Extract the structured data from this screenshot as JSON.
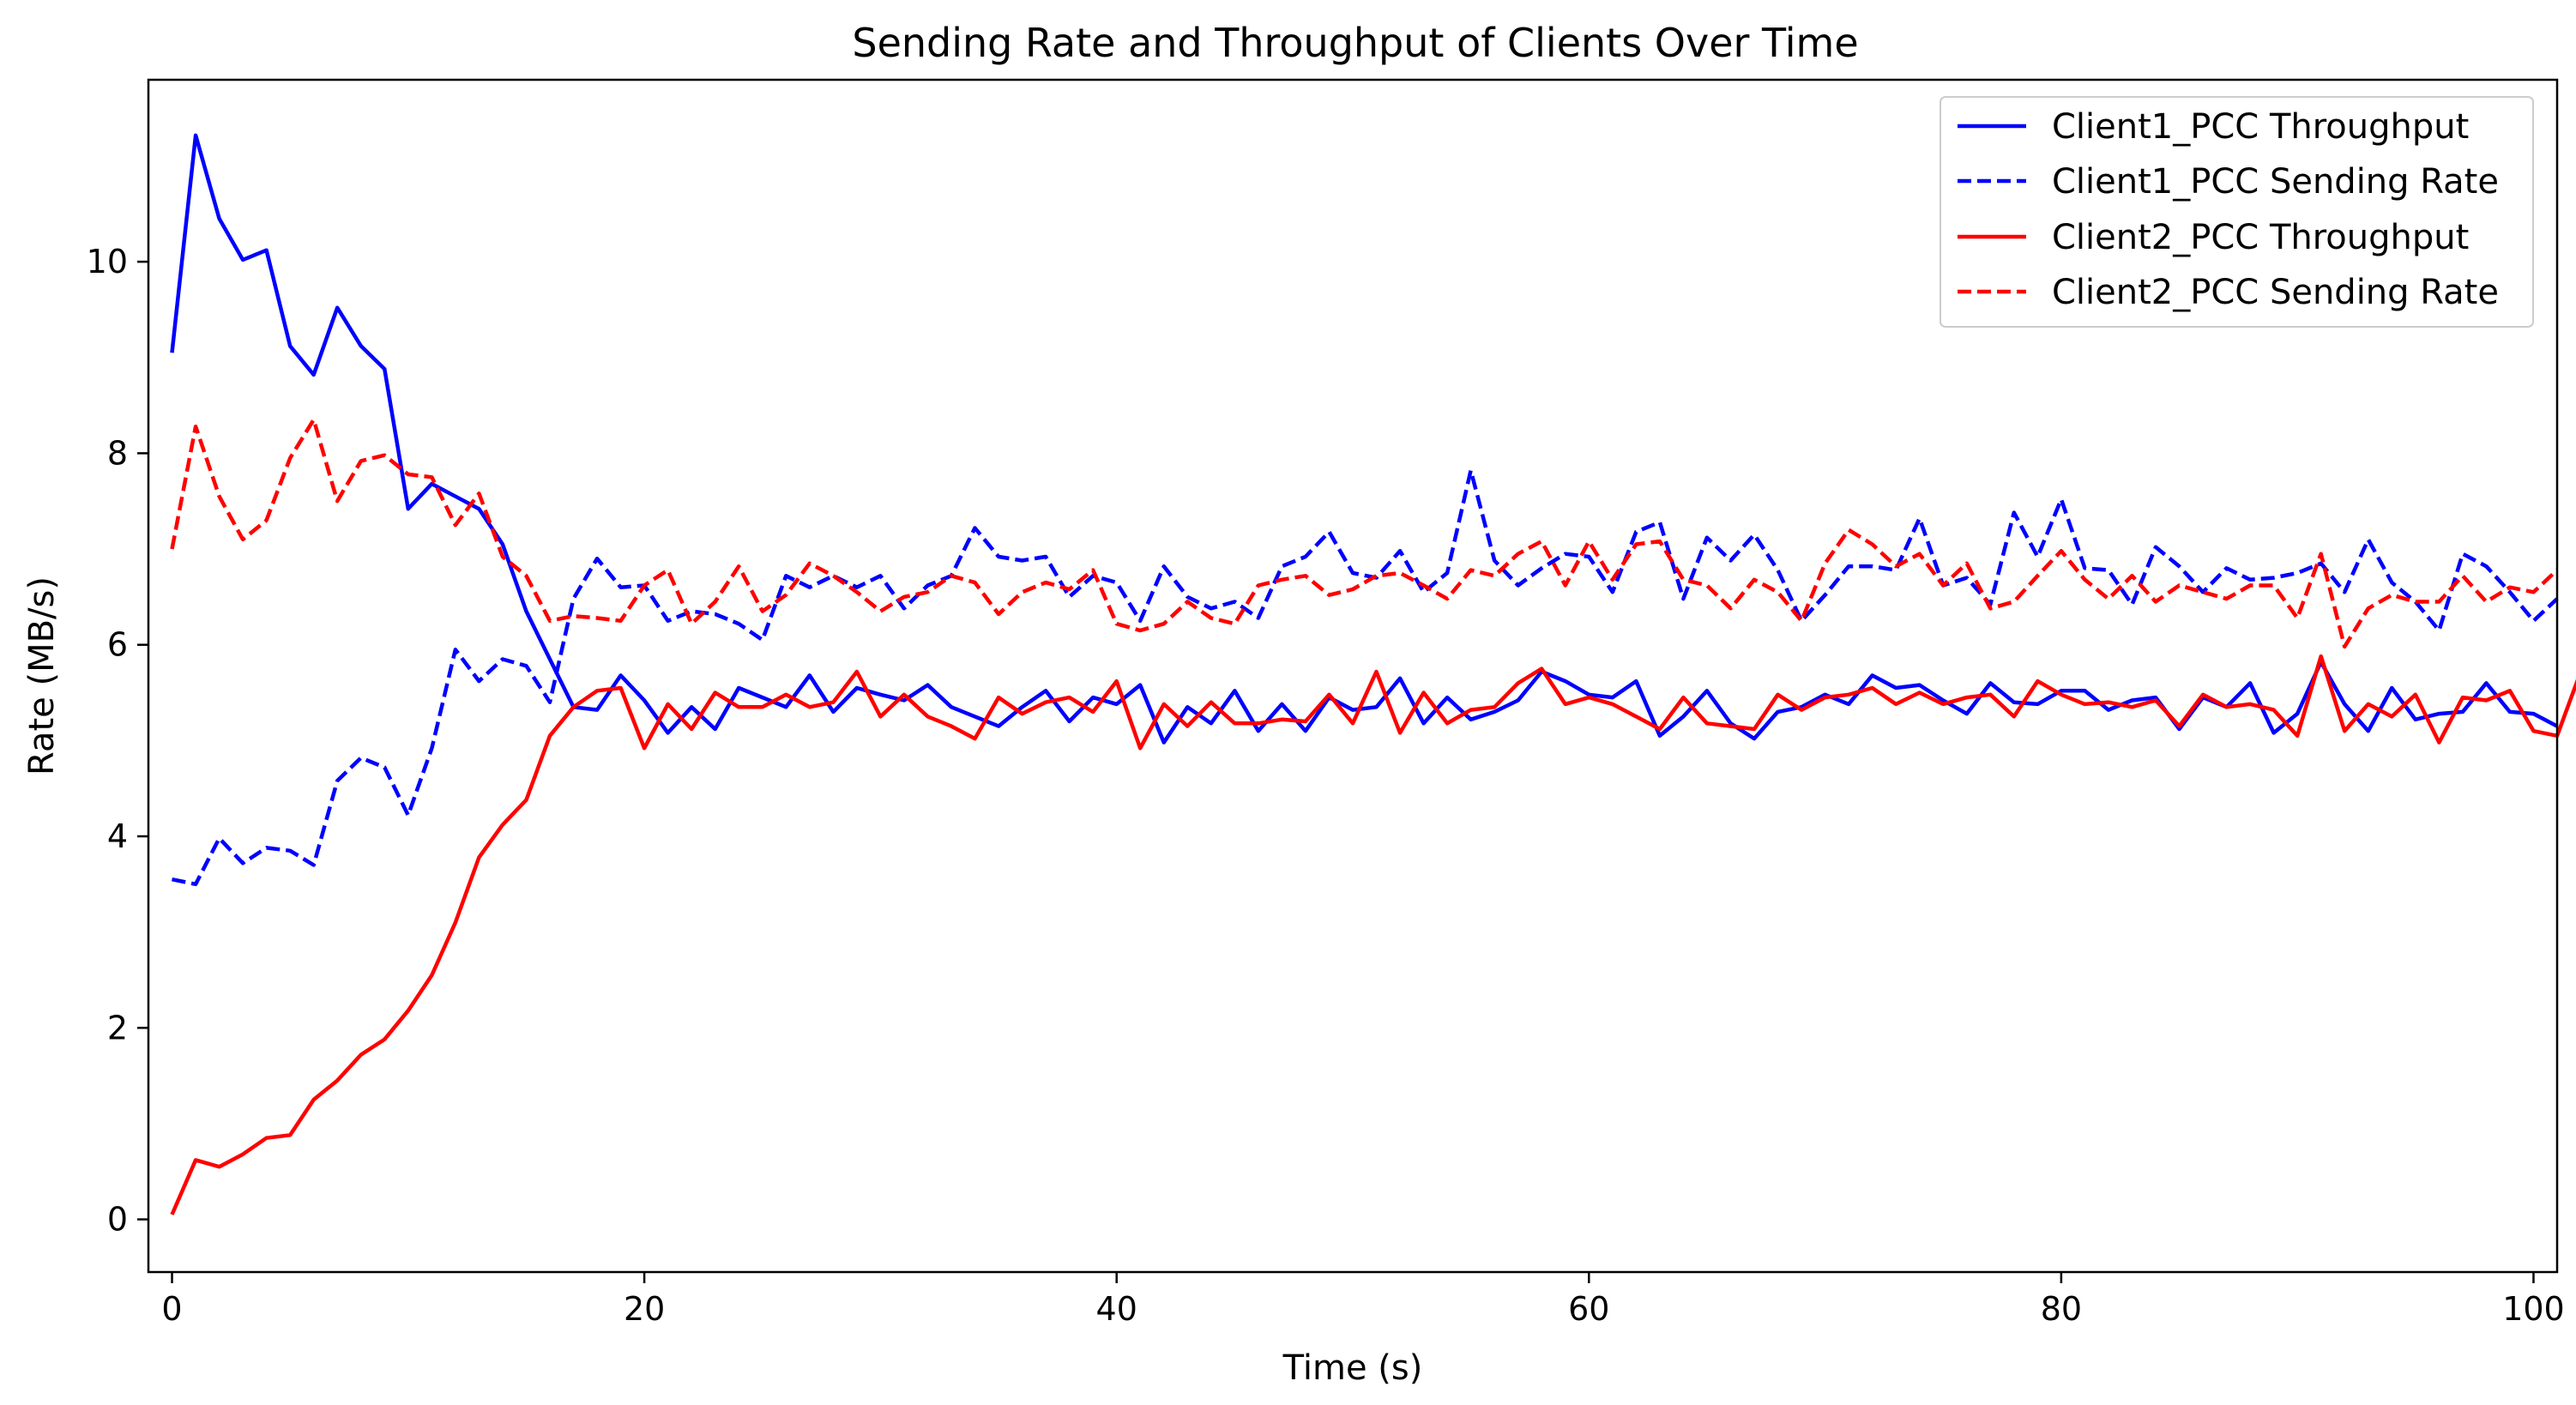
{
  "chart_data": {
    "type": "line",
    "title": "Sending Rate and Throughput of Clients Over Time",
    "xlabel": "Time (s)",
    "ylabel": "Rate (MB/s)",
    "xlim": [
      -1,
      101
    ],
    "ylim": [
      -0.55,
      11.9
    ],
    "xticks": [
      0,
      20,
      40,
      60,
      80,
      100
    ],
    "yticks": [
      0,
      2,
      4,
      6,
      8,
      10
    ],
    "grid": false,
    "legend_position": "top-right",
    "series": [
      {
        "name": "Client1_PCC Throughput",
        "color": "#0000ff",
        "style": "solid",
        "values": [
          9.05,
          11.32,
          10.45,
          10.02,
          10.12,
          9.12,
          8.82,
          9.52,
          9.12,
          8.88,
          7.42,
          7.68,
          7.55,
          7.42,
          7.05,
          6.35,
          5.85,
          5.35,
          5.32,
          5.68,
          5.42,
          5.08,
          5.35,
          5.12,
          5.55,
          5.45,
          5.35,
          5.68,
          5.3,
          5.55,
          5.48,
          5.42,
          5.58,
          5.35,
          5.25,
          5.15,
          5.35,
          5.52,
          5.2,
          5.45,
          5.38,
          5.58,
          4.98,
          5.35,
          5.18,
          5.52,
          5.1,
          5.38,
          5.1,
          5.45,
          5.32,
          5.35,
          5.65,
          5.18,
          5.45,
          5.22,
          5.3,
          5.42,
          5.72,
          5.62,
          5.48,
          5.45,
          5.62,
          5.05,
          5.25,
          5.52,
          5.18,
          5.02,
          5.3,
          5.35,
          5.48,
          5.38,
          5.68,
          5.55,
          5.58,
          5.42,
          5.28,
          5.6,
          5.4,
          5.38,
          5.52,
          5.52,
          5.32,
          5.42,
          5.45,
          5.12,
          5.45,
          5.35,
          5.6,
          5.08,
          5.28,
          5.82,
          5.38,
          5.1,
          5.55,
          5.22,
          5.28,
          5.3,
          5.6,
          5.3,
          5.28,
          5.15
        ]
      },
      {
        "name": "Client1_PCC Sending Rate",
        "color": "#0000ff",
        "style": "dashed",
        "values": [
          3.55,
          3.5,
          3.98,
          3.72,
          3.88,
          3.85,
          3.7,
          4.58,
          4.82,
          4.72,
          4.22,
          4.92,
          5.95,
          5.62,
          5.85,
          5.78,
          5.4,
          6.48,
          6.9,
          6.6,
          6.62,
          6.25,
          6.35,
          6.32,
          6.22,
          6.05,
          6.72,
          6.6,
          6.72,
          6.6,
          6.72,
          6.38,
          6.62,
          6.72,
          7.22,
          6.92,
          6.88,
          6.92,
          6.5,
          6.72,
          6.65,
          6.25,
          6.82,
          6.5,
          6.38,
          6.45,
          6.28,
          6.82,
          6.92,
          7.18,
          6.75,
          6.7,
          6.98,
          6.55,
          6.75,
          7.82,
          6.88,
          6.62,
          6.8,
          6.95,
          6.92,
          6.55,
          7.18,
          7.28,
          6.48,
          7.12,
          6.88,
          7.15,
          6.78,
          6.25,
          6.52,
          6.82,
          6.82,
          6.78,
          7.32,
          6.62,
          6.7,
          6.42,
          7.38,
          6.92,
          7.52,
          6.8,
          6.78,
          6.42,
          7.02,
          6.82,
          6.55,
          6.8,
          6.68,
          6.7,
          6.75,
          6.85,
          6.55,
          7.1,
          6.65,
          6.45,
          6.15,
          6.95,
          6.82,
          6.55,
          6.25,
          6.48
        ]
      },
      {
        "name": "Client2_PCC Throughput",
        "color": "#ff0000",
        "style": "solid",
        "values": [
          0.05,
          0.62,
          0.55,
          0.68,
          0.85,
          0.88,
          1.25,
          1.45,
          1.72,
          1.88,
          2.18,
          2.55,
          3.1,
          3.78,
          4.12,
          4.38,
          5.05,
          5.35,
          5.52,
          5.55,
          4.92,
          5.38,
          5.12,
          5.5,
          5.35,
          5.35,
          5.48,
          5.35,
          5.4,
          5.72,
          5.25,
          5.48,
          5.25,
          5.15,
          5.02,
          5.45,
          5.28,
          5.4,
          5.45,
          5.3,
          5.62,
          4.92,
          5.38,
          5.15,
          5.4,
          5.18,
          5.18,
          5.22,
          5.2,
          5.48,
          5.18,
          5.72,
          5.08,
          5.5,
          5.18,
          5.32,
          5.35,
          5.6,
          5.75,
          5.38,
          5.45,
          5.38,
          5.25,
          5.12,
          5.45,
          5.18,
          5.15,
          5.12,
          5.48,
          5.32,
          5.45,
          5.48,
          5.55,
          5.38,
          5.5,
          5.38,
          5.45,
          5.48,
          5.25,
          5.62,
          5.48,
          5.38,
          5.4,
          5.35,
          5.42,
          5.15,
          5.48,
          5.35,
          5.38,
          5.32,
          5.05,
          5.88,
          5.1,
          5.38,
          5.25,
          5.48,
          4.98,
          5.45,
          5.42,
          5.52,
          5.1,
          5.05,
          5.72
        ]
      },
      {
        "name": "Client2_PCC Sending Rate",
        "color": "#ff0000",
        "style": "dashed",
        "values": [
          7.0,
          8.28,
          7.55,
          7.1,
          7.3,
          7.95,
          8.35,
          7.5,
          7.92,
          7.98,
          7.78,
          7.75,
          7.25,
          7.58,
          6.92,
          6.72,
          6.25,
          6.3,
          6.28,
          6.25,
          6.62,
          6.78,
          6.22,
          6.45,
          6.82,
          6.35,
          6.52,
          6.85,
          6.72,
          6.55,
          6.35,
          6.5,
          6.55,
          6.72,
          6.65,
          6.32,
          6.55,
          6.65,
          6.58,
          6.78,
          6.22,
          6.15,
          6.22,
          6.45,
          6.28,
          6.22,
          6.62,
          6.68,
          6.72,
          6.52,
          6.58,
          6.72,
          6.75,
          6.62,
          6.48,
          6.78,
          6.72,
          6.95,
          7.08,
          6.62,
          7.08,
          6.68,
          7.05,
          7.08,
          6.68,
          6.62,
          6.38,
          6.68,
          6.55,
          6.25,
          6.85,
          7.2,
          7.05,
          6.82,
          6.95,
          6.62,
          6.85,
          6.38,
          6.45,
          6.72,
          6.98,
          6.68,
          6.48,
          6.72,
          6.45,
          6.62,
          6.55,
          6.48,
          6.62,
          6.62,
          6.28,
          6.95,
          5.98,
          6.38,
          6.52,
          6.45,
          6.45,
          6.72,
          6.45,
          6.6,
          6.55,
          6.78
        ]
      }
    ]
  }
}
